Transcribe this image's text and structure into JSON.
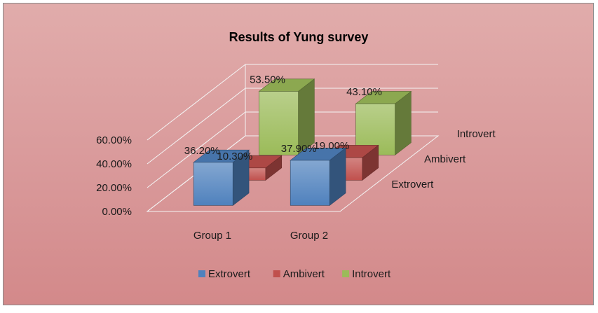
{
  "chart_data": {
    "type": "bar",
    "title": "Results of Yung survey",
    "categories": [
      "Group 1",
      "Group 2"
    ],
    "series": [
      {
        "name": "Extrovert",
        "values": [
          36.2,
          37.9
        ],
        "labels": [
          "36.20%",
          "37.90%"
        ],
        "color": "#4f81bd"
      },
      {
        "name": "Ambivert",
        "values": [
          10.3,
          19.0
        ],
        "labels": [
          "10.30%",
          "19.00%"
        ],
        "color": "#c0504d"
      },
      {
        "name": "Introvert",
        "values": [
          53.5,
          43.1
        ],
        "labels": [
          "53.50%",
          "43.10%"
        ],
        "color": "#9bbb59"
      }
    ],
    "y_ticks": [
      "0.00%",
      "20.00%",
      "40.00%",
      "60.00%"
    ],
    "ylim": [
      0,
      60
    ],
    "depth_labels": [
      "Extrovert",
      "Ambivert",
      "Introvert"
    ],
    "legend_position": "bottom",
    "grid": true,
    "three_d": true
  }
}
